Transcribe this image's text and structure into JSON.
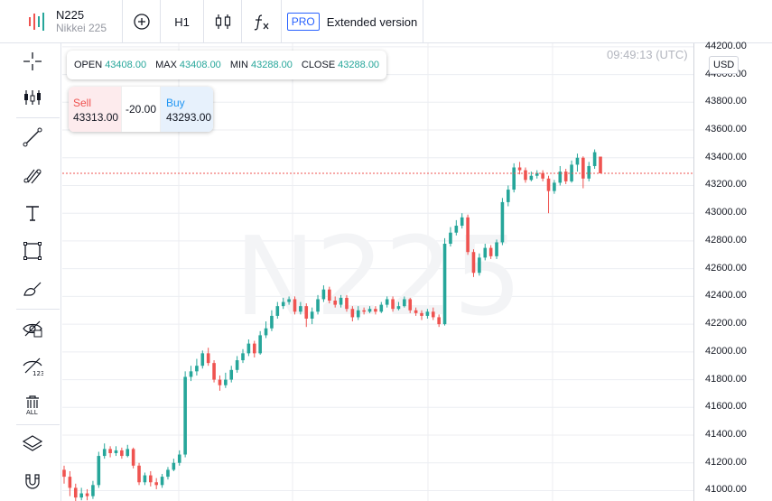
{
  "topbar": {
    "symbol": "N225",
    "symbol_sub": "Nikkei 225",
    "add_icon": "plus-circle-icon",
    "interval": "H1",
    "chart_type_icon": "candles-icon",
    "indicators_icon": "fx-icon",
    "pro_badge": "PRO",
    "extended_label": "Extended version"
  },
  "left_toolbar": [
    "crosshair-icon",
    "bars-icon",
    "trendline-icon",
    "fib-icon",
    "text-icon",
    "rectangle-icon",
    "brush-icon",
    "hide-eye-icon",
    "hide-123-icon",
    "trash-all-icon",
    "layers-icon",
    "magnet-icon"
  ],
  "ohlc": {
    "open_label": "OPEN",
    "open": "43408.00",
    "max_label": "MAX",
    "max": "43408.00",
    "min_label": "MIN",
    "min": "43288.00",
    "close_label": "CLOSE",
    "close": "43288.00"
  },
  "trade": {
    "sell_label": "Sell",
    "sell": "43313.00",
    "spread": "-20.00",
    "buy_label": "Buy",
    "buy": "43293.00"
  },
  "timestamp": "09:49:13 (UTC)",
  "watermark": "N225",
  "currency": "USD",
  "colors": {
    "up": "#26a69a",
    "down": "#ef5350",
    "grid": "#eceef2",
    "current_line": "#ef5350"
  },
  "chart_data": {
    "type": "candlestick",
    "current_price": 43288,
    "ylim": [
      40925,
      44225
    ],
    "y_ticks": [
      "41000.00",
      "41200.00",
      "41400.00",
      "41600.00",
      "41800.00",
      "42000.00",
      "42200.00",
      "42400.00",
      "42600.00",
      "42800.00",
      "43000.00",
      "43200.00",
      "43400.00",
      "43600.00",
      "43800.00",
      "44000.00",
      "44200.00"
    ],
    "candles": [
      [
        41150,
        41100,
        41180,
        41050
      ],
      [
        41100,
        41020,
        41140,
        40960
      ],
      [
        41020,
        40950,
        41050,
        40920
      ],
      [
        40950,
        40980,
        41020,
        40930
      ],
      [
        40980,
        40960,
        41010,
        40930
      ],
      [
        40960,
        41040,
        41070,
        40940
      ],
      [
        41040,
        41250,
        41280,
        41020
      ],
      [
        41250,
        41300,
        41340,
        41230
      ],
      [
        41300,
        41270,
        41320,
        41240
      ],
      [
        41270,
        41290,
        41320,
        41250
      ],
      [
        41290,
        41250,
        41310,
        41230
      ],
      [
        41250,
        41300,
        41330,
        41240
      ],
      [
        41300,
        41180,
        41310,
        41160
      ],
      [
        41180,
        41060,
        41200,
        41040
      ],
      [
        41060,
        41110,
        41130,
        41040
      ],
      [
        41110,
        41060,
        41140,
        41030
      ],
      [
        41060,
        41040,
        41090,
        41010
      ],
      [
        41040,
        41100,
        41120,
        41020
      ],
      [
        41100,
        41150,
        41170,
        41080
      ],
      [
        41150,
        41200,
        41230,
        41140
      ],
      [
        41200,
        41260,
        41290,
        41180
      ],
      [
        41260,
        41820,
        41860,
        41240
      ],
      [
        41820,
        41860,
        41900,
        41790
      ],
      [
        41860,
        41900,
        41950,
        41830
      ],
      [
        41900,
        41990,
        42010,
        41880
      ],
      [
        41990,
        41920,
        42030,
        41900
      ],
      [
        41920,
        41800,
        41940,
        41780
      ],
      [
        41800,
        41760,
        41830,
        41720
      ],
      [
        41760,
        41800,
        41850,
        41740
      ],
      [
        41800,
        41870,
        41900,
        41780
      ],
      [
        41870,
        41940,
        41970,
        41850
      ],
      [
        41940,
        41990,
        42020,
        41920
      ],
      [
        41990,
        42060,
        42090,
        41970
      ],
      [
        42060,
        41990,
        42080,
        41960
      ],
      [
        41990,
        42120,
        42150,
        41980
      ],
      [
        42120,
        42170,
        42220,
        42100
      ],
      [
        42170,
        42260,
        42300,
        42150
      ],
      [
        42260,
        42330,
        42360,
        42240
      ],
      [
        42330,
        42360,
        42390,
        42310
      ],
      [
        42360,
        42380,
        42400,
        42340
      ],
      [
        42380,
        42290,
        42400,
        42270
      ],
      [
        42290,
        42330,
        42360,
        42270
      ],
      [
        42330,
        42240,
        42350,
        42180
      ],
      [
        42240,
        42290,
        42320,
        42200
      ],
      [
        42290,
        42380,
        42410,
        42270
      ],
      [
        42380,
        42450,
        42480,
        42360
      ],
      [
        42450,
        42370,
        42470,
        42350
      ],
      [
        42370,
        42340,
        42400,
        42320
      ],
      [
        42340,
        42390,
        42410,
        42320
      ],
      [
        42390,
        42310,
        42410,
        42290
      ],
      [
        42310,
        42250,
        42330,
        42220
      ],
      [
        42250,
        42300,
        42330,
        42230
      ],
      [
        42300,
        42290,
        42320,
        42270
      ],
      [
        42290,
        42310,
        42330,
        42280
      ],
      [
        42310,
        42290,
        42330,
        42270
      ],
      [
        42290,
        42340,
        42360,
        42280
      ],
      [
        42340,
        42380,
        42400,
        42320
      ],
      [
        42380,
        42310,
        42400,
        42290
      ],
      [
        42310,
        42330,
        42360,
        42300
      ],
      [
        42330,
        42380,
        42400,
        42320
      ],
      [
        42380,
        42300,
        42390,
        42280
      ],
      [
        42300,
        42280,
        42320,
        42260
      ],
      [
        42280,
        42260,
        42300,
        42230
      ],
      [
        42260,
        42290,
        42310,
        42240
      ],
      [
        42290,
        42250,
        42320,
        42230
      ],
      [
        42250,
        42200,
        42270,
        42180
      ],
      [
        42200,
        42780,
        42820,
        42190
      ],
      [
        42780,
        42860,
        42900,
        42760
      ],
      [
        42860,
        42910,
        42950,
        42840
      ],
      [
        42910,
        42970,
        43000,
        42890
      ],
      [
        42970,
        42720,
        42990,
        42700
      ],
      [
        42720,
        42570,
        42740,
        42540
      ],
      [
        42570,
        42680,
        42710,
        42550
      ],
      [
        42680,
        42750,
        42780,
        42660
      ],
      [
        42750,
        42690,
        42770,
        42670
      ],
      [
        42690,
        42790,
        42810,
        42670
      ],
      [
        42790,
        43080,
        43110,
        42770
      ],
      [
        43080,
        43170,
        43200,
        43050
      ],
      [
        43170,
        43330,
        43360,
        43150
      ],
      [
        43330,
        43310,
        43370,
        43280
      ],
      [
        43310,
        43240,
        43330,
        43220
      ],
      [
        43240,
        43270,
        43300,
        43230
      ],
      [
        43270,
        43290,
        43310,
        43250
      ],
      [
        43290,
        43250,
        43310,
        43230
      ],
      [
        43250,
        43160,
        43270,
        43000
      ],
      [
        43160,
        43220,
        43240,
        43140
      ],
      [
        43220,
        43300,
        43340,
        43200
      ],
      [
        43300,
        43230,
        43320,
        43210
      ],
      [
        43230,
        43350,
        43380,
        43220
      ],
      [
        43350,
        43400,
        43430,
        43300
      ],
      [
        43400,
        43250,
        43410,
        43180
      ],
      [
        43250,
        43340,
        43370,
        43230
      ],
      [
        43340,
        43440,
        43460,
        43320
      ],
      [
        43408,
        43288,
        43408,
        43288
      ]
    ]
  }
}
